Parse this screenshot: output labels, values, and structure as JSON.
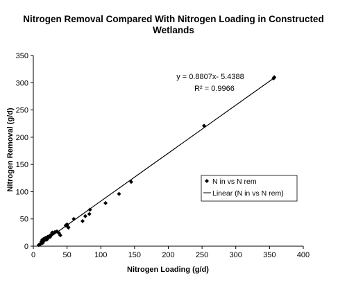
{
  "chart_data": {
    "type": "scatter",
    "title_line1": "Nitrogen Removal Compared With Nitrogen Loading in Constructed",
    "title_line2": "Wetlands",
    "xlabel": "Nitrogen Loading (g/d)",
    "ylabel": "Nitrogen Removal (g/d)",
    "xlim": [
      0,
      400
    ],
    "ylim": [
      0,
      350
    ],
    "x_ticks": [
      0,
      50,
      100,
      150,
      200,
      250,
      300,
      350,
      400
    ],
    "y_ticks": [
      0,
      50,
      100,
      150,
      200,
      250,
      300,
      350
    ],
    "grid": false,
    "legend_position": "right-middle",
    "series": [
      {
        "name": "N in vs N rem",
        "marker": "diamond",
        "color": "#000000",
        "points": [
          [
            8,
            2
          ],
          [
            10,
            3
          ],
          [
            11,
            5
          ],
          [
            12,
            8
          ],
          [
            13,
            10
          ],
          [
            13.5,
            12
          ],
          [
            14,
            6
          ],
          [
            15,
            9
          ],
          [
            16,
            14
          ],
          [
            17,
            11
          ],
          [
            18,
            15
          ],
          [
            19,
            13
          ],
          [
            20,
            12
          ],
          [
            21,
            17
          ],
          [
            22,
            15
          ],
          [
            24,
            19
          ],
          [
            25,
            17
          ],
          [
            27,
            22
          ],
          [
            28,
            25
          ],
          [
            30,
            24
          ],
          [
            32,
            26
          ],
          [
            35,
            27
          ],
          [
            38,
            24
          ],
          [
            40,
            20
          ],
          [
            48,
            38
          ],
          [
            50,
            40
          ],
          [
            51,
            36
          ],
          [
            52,
            34
          ],
          [
            60,
            50
          ],
          [
            73,
            46
          ],
          [
            77,
            55
          ],
          [
            83,
            59
          ],
          [
            84,
            67
          ],
          [
            107,
            79
          ],
          [
            127,
            96
          ],
          [
            145,
            118
          ],
          [
            253,
            221
          ],
          [
            356,
            308
          ],
          [
            357,
            310
          ]
        ]
      },
      {
        "name": "Linear (N in vs N rem)",
        "type": "line",
        "color": "#000000",
        "slope": 0.8807,
        "intercept": -5.4388,
        "x_range": [
          6,
          357
        ]
      }
    ],
    "annotations": {
      "equation": "y = 0.8807x- 5.4388",
      "r2": "R² = 0.9966"
    },
    "legend": {
      "entries": [
        "N in vs N rem",
        "Linear (N in vs N rem)"
      ]
    }
  }
}
